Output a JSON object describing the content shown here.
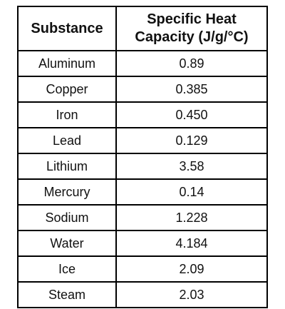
{
  "table": {
    "header": [
      [
        "Substance"
      ],
      [
        "Specific Heat",
        "Capacity (J/g/°C)"
      ]
    ],
    "rows": [
      [
        "Aluminum",
        "0.89"
      ],
      [
        "Copper",
        "0.385"
      ],
      [
        "Iron",
        "0.450"
      ],
      [
        "Lead",
        "0.129"
      ],
      [
        "Lithium",
        "3.58"
      ],
      [
        "Mercury",
        "0.14"
      ],
      [
        "Sodium",
        "1.228"
      ],
      [
        "Water",
        "4.184"
      ],
      [
        "Ice",
        "2.09"
      ],
      [
        "Steam",
        "2.03"
      ]
    ]
  }
}
